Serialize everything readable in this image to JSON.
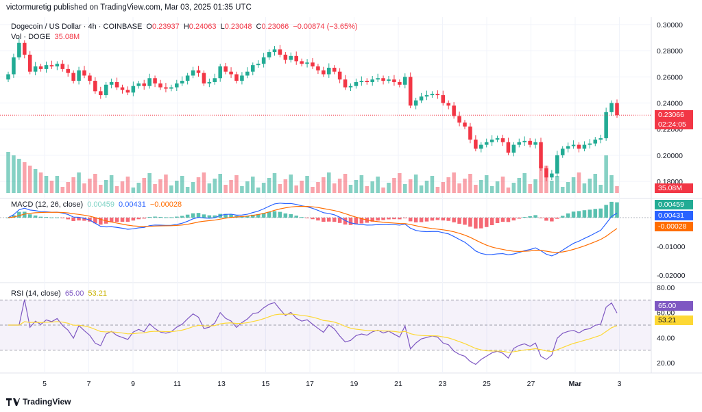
{
  "header": {
    "publisher": "victormuretig published on TradingView.com, Mar 03, 2025 01:35 UTC"
  },
  "symbol": {
    "name": "Dogecoin / US Dollar · 4h · COINBASE",
    "o_label": "O",
    "o": "0.23937",
    "h_label": "H",
    "h": "0.24063",
    "l_label": "L",
    "l": "0.23048",
    "c_label": "C",
    "c": "0.23066",
    "change": "−0.00874 (−3.65%)"
  },
  "volume": {
    "label": "Vol · DOGE",
    "value": "35.08M"
  },
  "macd_legend": {
    "label": "MACD (12, 26, close)",
    "hist": "0.00459",
    "macd": "0.00431",
    "signal": "−0.00028"
  },
  "rsi_legend": {
    "label": "RSI (14, close)",
    "rsi": "65.00",
    "ma": "53.21"
  },
  "badges": {
    "price": "0.23066",
    "countdown": "02:24:05",
    "volume": "35.08M",
    "macd_hist": "0.00459",
    "macd_line": "0.00431",
    "macd_signal": "-0.00028",
    "rsi": "65.00",
    "rsi_ma": "53.21"
  },
  "footer": {
    "brand": "TradingView"
  },
  "colors": {
    "up": "#22ab94",
    "down": "#f23645",
    "macd": "#2962ff",
    "signal": "#ff6d00",
    "rsi": "#7e57c2",
    "rsi_ma": "#fdd835"
  },
  "chart_data": [
    {
      "type": "candlestick",
      "title": "Dogecoin / US Dollar · 4h · COINBASE",
      "ylim": [
        0.17,
        0.31
      ],
      "y_ticks": [
        "0.30000",
        "0.28000",
        "0.26000",
        "0.24000",
        "0.22000",
        "0.20000",
        "0.18000"
      ],
      "x_ticks": [
        "5",
        "7",
        "9",
        "11",
        "13",
        "15",
        "17",
        "19",
        "21",
        "23",
        "25",
        "27",
        "Mar",
        "3"
      ],
      "close": [
        0.262,
        0.275,
        0.286,
        0.277,
        0.264,
        0.268,
        0.266,
        0.269,
        0.268,
        0.27,
        0.266,
        0.263,
        0.257,
        0.265,
        0.261,
        0.257,
        0.249,
        0.246,
        0.254,
        0.256,
        0.252,
        0.25,
        0.248,
        0.253,
        0.255,
        0.253,
        0.259,
        0.255,
        0.252,
        0.251,
        0.252,
        0.255,
        0.257,
        0.261,
        0.265,
        0.263,
        0.255,
        0.256,
        0.259,
        0.268,
        0.264,
        0.262,
        0.257,
        0.261,
        0.264,
        0.269,
        0.27,
        0.275,
        0.279,
        0.281,
        0.277,
        0.273,
        0.276,
        0.272,
        0.27,
        0.271,
        0.268,
        0.265,
        0.262,
        0.267,
        0.264,
        0.258,
        0.252,
        0.253,
        0.256,
        0.257,
        0.256,
        0.258,
        0.259,
        0.257,
        0.258,
        0.256,
        0.254,
        0.26,
        0.238,
        0.242,
        0.245,
        0.246,
        0.247,
        0.246,
        0.24,
        0.238,
        0.23,
        0.225,
        0.222,
        0.212,
        0.205,
        0.208,
        0.21,
        0.212,
        0.213,
        0.21,
        0.202,
        0.208,
        0.21,
        0.211,
        0.208,
        0.21,
        0.19,
        0.183,
        0.186,
        0.2,
        0.205,
        0.207,
        0.208,
        0.205,
        0.208,
        0.209,
        0.212,
        0.213,
        0.233,
        0.24,
        0.2307
      ],
      "volume_last": "35.08M"
    },
    {
      "type": "line",
      "title": "MACD (12, 26, close)",
      "ylim": [
        -0.023,
        0.006
      ],
      "y_ticks": [
        "-0.01000",
        "-0.02000"
      ],
      "series": [
        {
          "name": "MACD",
          "last": 0.00431
        },
        {
          "name": "Signal",
          "last": -0.00028
        },
        {
          "name": "Histogram",
          "last": 0.00459
        }
      ]
    },
    {
      "type": "line",
      "title": "RSI (14, close)",
      "ylim": [
        15,
        82
      ],
      "y_ticks": [
        "80.00",
        "60.00",
        "40.00",
        "20.00"
      ],
      "bands": [
        30,
        50,
        70
      ],
      "series": [
        {
          "name": "RSI",
          "last": 65.0
        },
        {
          "name": "RSI-based MA",
          "last": 53.21
        }
      ]
    }
  ]
}
